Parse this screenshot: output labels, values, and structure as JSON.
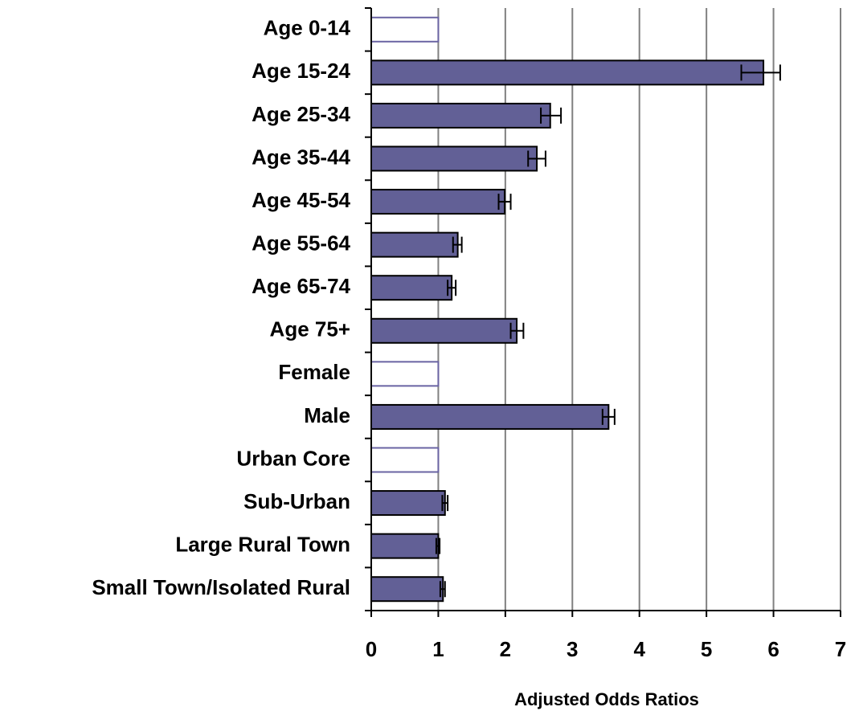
{
  "chart_data": {
    "type": "hbar",
    "xlabel": "Adjusted Odds Ratios",
    "categories": [
      "Age 0-14",
      "Age 15-24",
      "Age 25-34",
      "Age 35-44",
      "Age 45-54",
      "Age 55-64",
      "Age 65-74",
      "Age 75+",
      "Female",
      "Male",
      "Urban Core",
      "Sub-Urban",
      "Large Rural Town",
      "Small Town/Isolated Rural"
    ],
    "values": [
      1,
      5.85,
      2.67,
      2.47,
      1.99,
      1.29,
      1.2,
      2.17,
      1,
      3.54,
      1,
      1.1,
      1,
      1.07
    ],
    "ci_low": [
      null,
      5.52,
      2.53,
      2.34,
      1.9,
      1.22,
      1.14,
      2.08,
      null,
      3.45,
      null,
      1.06,
      0.97,
      1.03
    ],
    "ci_high": [
      null,
      6.1,
      2.83,
      2.6,
      2.08,
      1.35,
      1.26,
      2.27,
      null,
      3.63,
      null,
      1.14,
      1.02,
      1.1
    ],
    "reference": [
      true,
      false,
      false,
      false,
      false,
      false,
      false,
      false,
      true,
      false,
      true,
      false,
      false,
      false
    ],
    "color": "#626096",
    "reference_color": "#6a64a3",
    "xlim": [
      0,
      7
    ],
    "xticks": [
      0,
      1,
      2,
      3,
      4,
      5,
      6,
      7
    ],
    "grid": true
  }
}
